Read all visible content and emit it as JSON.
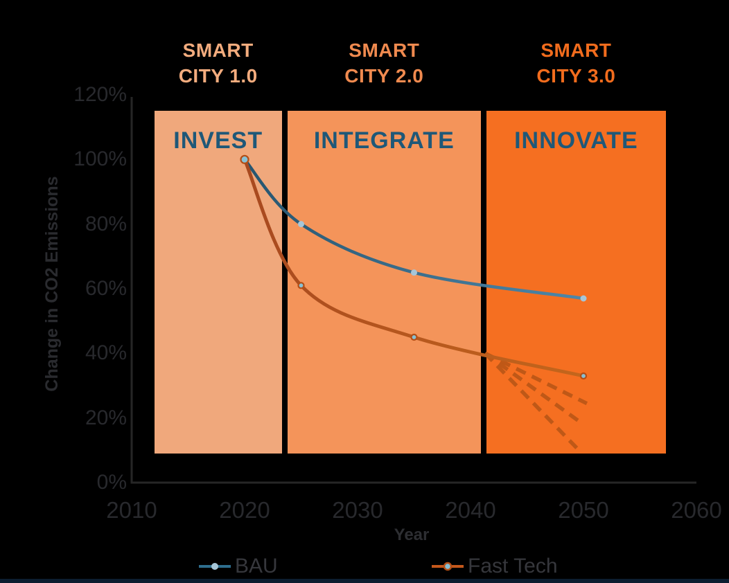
{
  "page": {
    "background": "#000000",
    "footer_bar_color": "#0C1D30"
  },
  "eras": [
    {
      "title_lines": [
        "SMART",
        "CITY 1.0"
      ],
      "color": "#F3AC7E"
    },
    {
      "title_lines": [
        "SMART",
        "CITY 2.0"
      ],
      "color": "#F08A4F"
    },
    {
      "title_lines": [
        "SMART",
        "CITY 3.0"
      ],
      "color": "#F26C1D"
    }
  ],
  "chart_data": {
    "type": "line",
    "title": "",
    "xlabel": "Year",
    "ylabel": "Change in CO2 Emissions",
    "x_ticks": [
      2010,
      2020,
      2030,
      2040,
      2050,
      2060
    ],
    "y_ticks": [
      "0%",
      "20%",
      "40%",
      "60%",
      "80%",
      "100%",
      "120%"
    ],
    "xlim": [
      2010,
      2060
    ],
    "ylim": [
      0,
      120
    ],
    "grid": false,
    "legend_position": "bottom",
    "bands": [
      {
        "label": "INVEST",
        "era": "SMART CITY 1.0",
        "x0": 2012,
        "x1": 2023.3,
        "y0": 9,
        "y1": 115,
        "fill": "#F0A87C",
        "label_color": "#1F5878"
      },
      {
        "label": "INTEGRATE",
        "era": "SMART CITY 2.0",
        "x0": 2023.8,
        "x1": 2040.9,
        "y0": 9,
        "y1": 115,
        "fill": "#F4945A",
        "label_color": "#1F5878"
      },
      {
        "label": "INNOVATE",
        "era": "SMART CITY 3.0",
        "x0": 2041.4,
        "x1": 2057.3,
        "y0": 9,
        "y1": 115,
        "fill": "#F56F21",
        "label_color": "#1F5878"
      }
    ],
    "series": [
      {
        "name": "BAU",
        "x": [
          2020,
          2025,
          2035,
          2050
        ],
        "values": [
          100,
          80,
          65,
          57
        ],
        "color_start": "#27556F",
        "color_end": "#4E87A9",
        "line_width": 4.5,
        "marker_fill": "#A6C6D8"
      },
      {
        "name": "Fast Tech",
        "x": [
          2020,
          2025,
          2035,
          2050
        ],
        "values": [
          100,
          61,
          45,
          33
        ],
        "color_start": "#A8491F",
        "color_end": "#C4661C",
        "line_width": 5,
        "marker_fill": "#87C0D4",
        "marker_ring": "#B34E16"
      }
    ],
    "projections": [
      {
        "x0": 2041.3,
        "y0": 40,
        "x1": 2050.3,
        "y1": 24.5
      },
      {
        "x0": 2041.3,
        "y0": 40,
        "x1": 2049.8,
        "y1": 18.5
      },
      {
        "x0": 2041.3,
        "y0": 40,
        "x1": 2049.6,
        "y1": 10
      }
    ],
    "projection_color": "#BF5817",
    "axis_color": "#262626"
  },
  "legend": [
    {
      "label": "BAU",
      "line_color": "#2E6E8E",
      "dot_fill": "#A6C6D8"
    },
    {
      "label": "Fast Tech",
      "line_color": "#C4581B",
      "dot_fill": "#87C0D4",
      "dot_ring": "#B34E16"
    }
  ]
}
